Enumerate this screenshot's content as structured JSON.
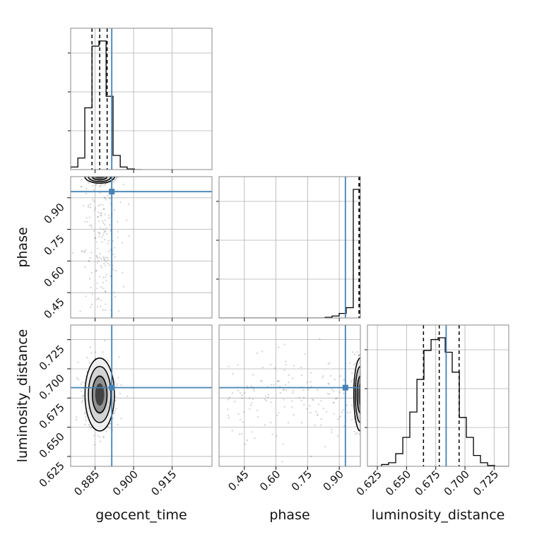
{
  "chart_data": {
    "type": "corner",
    "title": "",
    "parameters": [
      {
        "name": "geocent_time",
        "label": "geocent_time",
        "range": [
          0.8755,
          0.9305
        ],
        "ticks": [
          0.885,
          0.9,
          0.915
        ],
        "tick_labels": [
          "0.885",
          "0.900",
          "0.915"
        ],
        "truth": 0.8915
      },
      {
        "name": "phase",
        "label": "phase",
        "range": [
          0.33,
          1.0
        ],
        "ticks": [
          0.45,
          0.6,
          0.75,
          0.9
        ],
        "tick_labels": [
          "0.45",
          "0.60",
          "0.75",
          "0.90"
        ],
        "truth": 0.9291
      },
      {
        "name": "luminosity_distance",
        "label": "luminosity_distance",
        "range": [
          0.6165,
          0.7375
        ],
        "ticks": [
          0.625,
          0.65,
          0.675,
          0.7,
          0.725
        ],
        "tick_labels": [
          "0.625",
          "0.650",
          "0.675",
          "0.700",
          "0.725"
        ],
        "truth": 0.6839
      }
    ],
    "quantiles": {
      "geocent_time": [
        0.8838,
        0.8868,
        0.8897
      ],
      "phase": [
        0.9935,
        0.9975,
        0.9995
      ],
      "luminosity_distance": [
        0.6645,
        0.678,
        0.695
      ]
    },
    "histograms": {
      "geocent_time": {
        "edges": [
          0.8755,
          0.8783,
          0.881,
          0.8838,
          0.8865,
          0.8893,
          0.892,
          0.8948,
          0.8975,
          0.9003,
          0.903
        ],
        "counts": [
          2,
          9,
          48,
          96,
          100,
          57,
          11,
          2,
          0.5,
          0
        ]
      },
      "phase": {
        "edges": [
          0.33,
          0.3635,
          0.397,
          0.4305,
          0.464,
          0.4975,
          0.531,
          0.5645,
          0.598,
          0.6315,
          0.665,
          0.6985,
          0.732,
          0.7655,
          0.799,
          0.8325,
          0.866,
          0.8995,
          0.933,
          0.9665,
          1.0
        ],
        "counts": [
          0,
          0,
          0,
          0,
          0,
          0,
          0,
          0,
          0,
          0,
          0,
          0,
          0,
          0,
          0,
          0.5,
          1.5,
          3.5,
          8,
          100
        ]
      },
      "luminosity_distance": {
        "edges": [
          0.6165,
          0.6225,
          0.6286,
          0.6346,
          0.6407,
          0.6468,
          0.6528,
          0.6589,
          0.6649,
          0.671,
          0.677,
          0.6831,
          0.6891,
          0.6952,
          0.7012,
          0.7073,
          0.7133,
          0.7194,
          0.7254,
          0.7315,
          0.7375
        ],
        "counts": [
          0,
          0,
          1,
          2,
          7,
          16,
          30,
          48,
          64,
          70,
          71,
          63,
          52,
          27,
          16,
          6,
          2,
          0.5,
          0,
          0
        ]
      }
    },
    "grid": true,
    "colors": {
      "truth": "#4682b4",
      "hist": "#000000",
      "quantile": "#000000",
      "points": "#000000",
      "grid": "#b0b0b0",
      "frame": "#888888"
    }
  }
}
